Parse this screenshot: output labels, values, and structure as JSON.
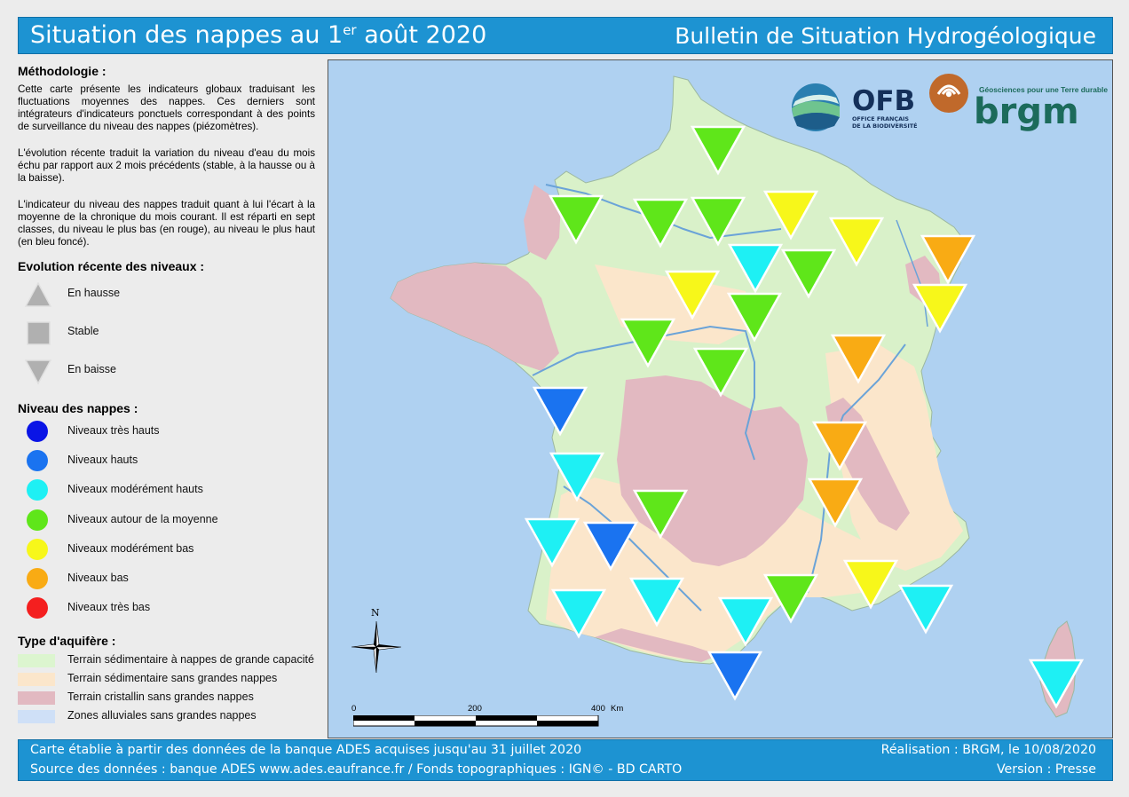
{
  "header": {
    "title_main": "Situation des nappes au 1",
    "title_sup": "er",
    "title_end": " août 2020",
    "bulletin": "Bulletin de Situation Hydrogéologique"
  },
  "methodology": {
    "title": "Méthodologie :",
    "p1": "Cette carte présente les indicateurs globaux traduisant les fluctuations moyennes des nappes. Ces derniers sont intégrateurs d'indicateurs ponctuels correspondant à des points de surveillance du niveau des nappes (piézomètres).",
    "p2": "L'évolution récente traduit la variation du niveau d'eau du mois échu par rapport aux 2 mois précédents (stable, à la hausse ou à la baisse).",
    "p3": "L'indicateur du niveau des nappes traduit quant à lui l'écart à la moyenne de la chronique du mois courant. Il est réparti en sept classes, du niveau le plus bas (en rouge), au niveau le plus haut (en bleu foncé)."
  },
  "evolution": {
    "title": "Evolution récente des niveaux :",
    "items": [
      {
        "label": "En hausse",
        "symbol": "up-triangle-icon"
      },
      {
        "label": "Stable",
        "symbol": "square-icon"
      },
      {
        "label": "En baisse",
        "symbol": "down-triangle-icon"
      }
    ]
  },
  "levels": {
    "title": "Niveau des nappes :",
    "items": [
      {
        "label": "Niveaux très hauts",
        "color": "#0a14e6"
      },
      {
        "label": "Niveaux hauts",
        "color": "#1a73f0"
      },
      {
        "label": "Niveaux modérément hauts",
        "color": "#1ef0f4"
      },
      {
        "label": "Niveaux autour de la moyenne",
        "color": "#5fe61a"
      },
      {
        "label": "Niveaux modérément bas",
        "color": "#f7f71a"
      },
      {
        "label": "Niveaux bas",
        "color": "#f9ab14"
      },
      {
        "label": "Niveaux très bas",
        "color": "#f41f1f"
      }
    ]
  },
  "aquifer": {
    "title": "Type d'aquifère :",
    "items": [
      {
        "label": "Terrain sédimentaire à nappes de grande capacité",
        "color": "#dcf5cf"
      },
      {
        "label": "Terrain sédimentaire sans grandes nappes",
        "color": "#fbe6cb"
      },
      {
        "label": "Terrain cristallin sans grandes nappes",
        "color": "#e2b9c1"
      },
      {
        "label": "Zones alluviales sans grandes nappes",
        "color": "#cfe0f7"
      }
    ]
  },
  "map": {
    "logos": {
      "ofb_main": "OFB",
      "ofb_sub1": "OFFICE FRANÇAIS",
      "ofb_sub2": "DE LA BIODIVERSITÉ",
      "brgm_tagline": "Géosciences pour une Terre durable",
      "brgm_name": "brgm"
    },
    "north_label": "N",
    "scale": {
      "t0": "0",
      "t1": "200",
      "t2": "400",
      "unit": "Km"
    },
    "markers": [
      {
        "trend": "down",
        "level": "Niveaux autour de la moyenne"
      },
      {
        "trend": "down",
        "level": "Niveaux autour de la moyenne"
      },
      {
        "trend": "down",
        "level": "Niveaux autour de la moyenne"
      },
      {
        "trend": "down",
        "level": "Niveaux autour de la moyenne"
      },
      {
        "trend": "down",
        "level": "Niveaux modérément bas"
      },
      {
        "trend": "down",
        "level": "Niveaux modérément bas"
      },
      {
        "trend": "down",
        "level": "Niveaux bas"
      },
      {
        "trend": "down",
        "level": "Niveaux modérément hauts"
      },
      {
        "trend": "down",
        "level": "Niveaux autour de la moyenne"
      },
      {
        "trend": "down",
        "level": "Niveaux modérément bas"
      },
      {
        "trend": "down",
        "level": "Niveaux autour de la moyenne"
      },
      {
        "trend": "down",
        "level": "Niveaux autour de la moyenne"
      },
      {
        "trend": "down",
        "level": "Niveaux autour de la moyenne"
      },
      {
        "trend": "down",
        "level": "Niveaux modérément bas"
      },
      {
        "trend": "down",
        "level": "Niveaux bas"
      },
      {
        "trend": "down",
        "level": "Niveaux hauts"
      },
      {
        "trend": "down",
        "level": "Niveaux bas"
      },
      {
        "trend": "down",
        "level": "Niveaux modérément hauts"
      },
      {
        "trend": "down",
        "level": "Niveaux bas"
      },
      {
        "trend": "down",
        "level": "Niveaux autour de la moyenne"
      },
      {
        "trend": "down",
        "level": "Niveaux modérément hauts"
      },
      {
        "trend": "down",
        "level": "Niveaux hauts"
      },
      {
        "trend": "down",
        "level": "Niveaux modérément hauts"
      },
      {
        "trend": "down",
        "level": "Niveaux modérément hauts"
      },
      {
        "trend": "down",
        "level": "Niveaux modérément hauts"
      },
      {
        "trend": "down",
        "level": "Niveaux autour de la moyenne"
      },
      {
        "trend": "down",
        "level": "Niveaux modérément bas"
      },
      {
        "trend": "down",
        "level": "Niveaux modérément hauts"
      },
      {
        "trend": "down",
        "level": "Niveaux hauts"
      },
      {
        "trend": "down",
        "level": "Niveaux modérément hauts"
      }
    ]
  },
  "footer": {
    "line1": "Carte établie à partir des données de la banque ADES acquises jusqu'au 31 juillet 2020",
    "line2": "Source des données : banque ADES www.ades.eaufrance.fr / Fonds topographiques : IGN© - BD CARTO",
    "credit": "Réalisation : BRGM, le 10/08/2020",
    "version": "Version : Presse"
  }
}
